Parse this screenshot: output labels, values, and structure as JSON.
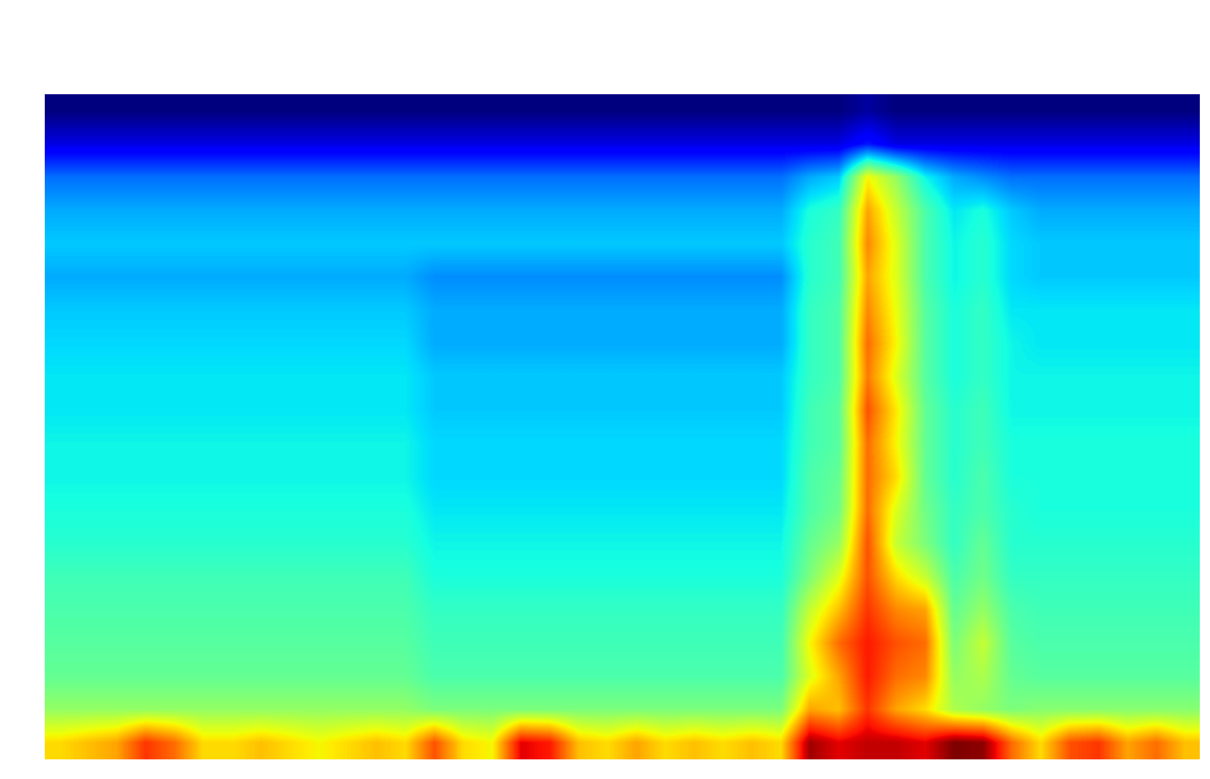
{
  "chart_data": {
    "type": "heatmap",
    "tick_labels": false,
    "cells": [
      [
        30,
        30,
        30,
        30,
        30,
        30,
        30,
        30,
        30,
        30,
        30,
        30,
        30,
        30,
        30,
        30,
        30,
        30,
        30,
        30,
        30,
        30,
        30,
        30,
        30,
        30,
        30,
        30,
        32,
        30,
        30,
        30,
        30,
        30,
        30,
        30,
        30,
        30,
        30,
        30
      ],
      [
        36,
        36,
        36,
        36,
        36,
        36,
        36,
        36,
        36,
        36,
        36,
        36,
        36,
        36,
        36,
        36,
        36,
        36,
        36,
        36,
        36,
        36,
        36,
        36,
        36,
        36,
        36,
        36,
        40,
        36,
        36,
        36,
        36,
        36,
        36,
        36,
        36,
        36,
        36,
        36
      ],
      [
        46,
        46,
        46,
        46,
        46,
        46,
        46,
        46,
        46,
        46,
        46,
        46,
        46,
        46,
        46,
        46,
        46,
        46,
        46,
        46,
        46,
        46,
        46,
        46,
        46,
        46,
        50,
        52,
        74,
        66,
        55,
        50,
        48,
        46,
        46,
        46,
        46,
        46,
        46,
        46
      ],
      [
        50,
        50,
        50,
        50,
        50,
        50,
        50,
        50,
        50,
        50,
        50,
        50,
        50,
        50,
        50,
        50,
        50,
        50,
        50,
        50,
        50,
        50,
        50,
        50,
        50,
        50,
        56,
        58,
        80,
        70,
        60,
        54,
        56,
        52,
        50,
        50,
        50,
        50,
        50,
        50
      ],
      [
        52,
        52,
        52,
        52,
        52,
        52,
        52,
        52,
        52,
        52,
        52,
        52,
        52,
        52,
        52,
        52,
        52,
        52,
        52,
        52,
        52,
        52,
        52,
        52,
        52,
        52,
        57,
        59,
        82,
        72,
        60,
        55,
        57,
        53,
        52,
        52,
        52,
        52,
        52,
        52
      ],
      [
        50,
        50,
        50,
        50,
        50,
        50,
        50,
        50,
        50,
        50,
        50,
        50,
        50,
        48,
        48,
        48,
        48,
        48,
        48,
        48,
        48,
        48,
        48,
        48,
        48,
        48,
        57,
        59,
        80,
        72,
        60,
        55,
        57,
        53,
        52,
        52,
        52,
        52,
        52,
        52
      ],
      [
        52,
        52,
        52,
        52,
        52,
        52,
        52,
        52,
        52,
        52,
        52,
        52,
        52,
        50,
        50,
        50,
        50,
        50,
        50,
        50,
        50,
        50,
        50,
        50,
        50,
        50,
        58,
        60,
        82,
        73,
        61,
        56,
        58,
        54,
        54,
        54,
        54,
        54,
        54,
        54
      ],
      [
        53,
        53,
        53,
        53,
        53,
        53,
        53,
        53,
        53,
        53,
        53,
        53,
        53,
        50,
        50,
        50,
        50,
        50,
        50,
        50,
        50,
        50,
        50,
        50,
        50,
        50,
        58,
        60,
        84,
        74,
        61,
        56,
        58,
        55,
        54,
        54,
        54,
        54,
        54,
        54
      ],
      [
        54,
        54,
        54,
        54,
        54,
        54,
        54,
        54,
        54,
        54,
        54,
        54,
        54,
        52,
        52,
        52,
        52,
        52,
        52,
        52,
        52,
        52,
        52,
        52,
        52,
        52,
        58,
        60,
        83,
        72,
        61,
        56,
        58,
        55,
        55,
        55,
        55,
        55,
        55,
        55
      ],
      [
        54,
        54,
        54,
        54,
        54,
        54,
        54,
        54,
        54,
        54,
        54,
        54,
        54,
        52,
        52,
        52,
        52,
        52,
        52,
        52,
        52,
        52,
        52,
        52,
        52,
        52,
        59,
        61,
        86,
        75,
        62,
        57,
        59,
        55,
        55,
        55,
        55,
        55,
        55,
        55
      ],
      [
        55,
        55,
        55,
        55,
        55,
        55,
        55,
        55,
        55,
        55,
        55,
        55,
        55,
        53,
        53,
        53,
        53,
        53,
        53,
        53,
        53,
        53,
        53,
        53,
        53,
        53,
        59,
        61,
        84,
        74,
        62,
        57,
        59,
        56,
        56,
        56,
        56,
        56,
        56,
        56
      ],
      [
        55,
        55,
        55,
        55,
        55,
        55,
        55,
        55,
        55,
        55,
        55,
        55,
        55,
        53,
        53,
        53,
        53,
        53,
        53,
        53,
        53,
        53,
        53,
        53,
        53,
        53,
        60,
        62,
        84,
        76,
        62,
        57,
        60,
        56,
        56,
        56,
        56,
        56,
        56,
        56
      ],
      [
        56,
        56,
        56,
        56,
        56,
        56,
        56,
        56,
        56,
        56,
        56,
        56,
        56,
        54,
        54,
        54,
        54,
        54,
        54,
        54,
        54,
        54,
        54,
        54,
        54,
        54,
        60,
        63,
        84,
        72,
        63,
        58,
        60,
        57,
        56,
        56,
        56,
        56,
        56,
        56
      ],
      [
        57,
        57,
        57,
        57,
        57,
        57,
        57,
        57,
        57,
        57,
        57,
        57,
        57,
        55,
        55,
        55,
        55,
        55,
        55,
        55,
        55,
        55,
        55,
        55,
        55,
        55,
        62,
        66,
        86,
        70,
        64,
        58,
        62,
        57,
        57,
        57,
        57,
        57,
        57,
        57
      ],
      [
        59,
        59,
        59,
        59,
        59,
        59,
        59,
        59,
        59,
        59,
        59,
        59,
        59,
        56,
        56,
        56,
        56,
        56,
        56,
        56,
        56,
        56,
        56,
        56,
        56,
        56,
        64,
        72,
        86,
        76,
        70,
        60,
        63,
        58,
        58,
        58,
        58,
        58,
        58,
        58
      ],
      [
        60,
        60,
        60,
        60,
        60,
        60,
        60,
        60,
        60,
        60,
        60,
        60,
        60,
        58,
        58,
        58,
        58,
        58,
        58,
        58,
        58,
        58,
        58,
        58,
        58,
        58,
        70,
        78,
        88,
        82,
        80,
        62,
        66,
        60,
        59,
        59,
        59,
        59,
        59,
        59
      ],
      [
        61,
        61,
        61,
        61,
        61,
        61,
        61,
        61,
        61,
        61,
        61,
        61,
        61,
        59,
        59,
        59,
        59,
        59,
        59,
        59,
        59,
        59,
        59,
        59,
        59,
        59,
        74,
        84,
        90,
        86,
        84,
        64,
        70,
        61,
        60,
        60,
        60,
        60,
        60,
        60
      ],
      [
        62,
        62,
        62,
        62,
        62,
        62,
        62,
        62,
        62,
        62,
        62,
        62,
        62,
        60,
        60,
        60,
        60,
        60,
        60,
        60,
        60,
        60,
        60,
        60,
        60,
        60,
        72,
        80,
        90,
        84,
        82,
        66,
        68,
        62,
        61,
        61,
        61,
        61,
        61,
        61
      ],
      [
        66,
        66,
        66,
        66,
        66,
        66,
        66,
        66,
        66,
        66,
        66,
        66,
        66,
        64,
        64,
        64,
        64,
        64,
        64,
        64,
        64,
        64,
        64,
        64,
        64,
        64,
        80,
        78,
        88,
        80,
        76,
        68,
        66,
        64,
        65,
        65,
        65,
        65,
        65,
        65
      ],
      [
        76,
        78,
        80,
        88,
        84,
        76,
        76,
        78,
        76,
        74,
        76,
        78,
        76,
        86,
        76,
        74,
        92,
        90,
        78,
        76,
        80,
        76,
        78,
        76,
        78,
        76,
        96,
        92,
        94,
        94,
        92,
        98,
        97,
        84,
        76,
        86,
        88,
        80,
        84,
        78
      ]
    ]
  }
}
